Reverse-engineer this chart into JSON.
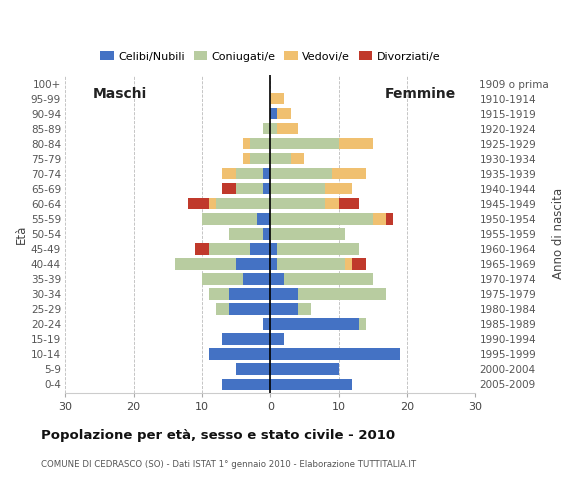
{
  "age_groups": [
    "0-4",
    "5-9",
    "10-14",
    "15-19",
    "20-24",
    "25-29",
    "30-34",
    "35-39",
    "40-44",
    "45-49",
    "50-54",
    "55-59",
    "60-64",
    "65-69",
    "70-74",
    "75-79",
    "80-84",
    "85-89",
    "90-94",
    "95-99",
    "100+"
  ],
  "birth_years": [
    "2005-2009",
    "2000-2004",
    "1995-1999",
    "1990-1994",
    "1985-1989",
    "1980-1984",
    "1975-1979",
    "1970-1974",
    "1965-1969",
    "1960-1964",
    "1955-1959",
    "1950-1954",
    "1945-1949",
    "1940-1944",
    "1935-1939",
    "1930-1934",
    "1925-1929",
    "1920-1924",
    "1915-1919",
    "1910-1914",
    "1909 o prima"
  ],
  "males": {
    "celibe": [
      7,
      5,
      9,
      7,
      1,
      6,
      6,
      4,
      5,
      3,
      1,
      2,
      0,
      1,
      1,
      0,
      0,
      0,
      0,
      0,
      0
    ],
    "coniugato": [
      0,
      0,
      0,
      0,
      0,
      2,
      3,
      6,
      9,
      6,
      5,
      8,
      8,
      4,
      4,
      3,
      3,
      1,
      0,
      0,
      0
    ],
    "vedovo": [
      0,
      0,
      0,
      0,
      0,
      0,
      0,
      0,
      0,
      0,
      0,
      0,
      1,
      0,
      2,
      1,
      1,
      0,
      0,
      0,
      0
    ],
    "divorziato": [
      0,
      0,
      0,
      0,
      0,
      0,
      0,
      0,
      0,
      2,
      0,
      0,
      3,
      2,
      0,
      0,
      0,
      0,
      0,
      0,
      0
    ]
  },
  "females": {
    "nubile": [
      12,
      10,
      19,
      2,
      13,
      4,
      4,
      2,
      1,
      1,
      0,
      0,
      0,
      0,
      0,
      0,
      0,
      0,
      1,
      0,
      0
    ],
    "coniugata": [
      0,
      0,
      0,
      0,
      1,
      2,
      13,
      13,
      10,
      12,
      11,
      15,
      8,
      8,
      9,
      3,
      10,
      1,
      0,
      0,
      0
    ],
    "vedova": [
      0,
      0,
      0,
      0,
      0,
      0,
      0,
      0,
      1,
      0,
      0,
      2,
      2,
      4,
      5,
      2,
      5,
      3,
      2,
      2,
      0
    ],
    "divorziata": [
      0,
      0,
      0,
      0,
      0,
      0,
      0,
      0,
      2,
      0,
      0,
      1,
      3,
      0,
      0,
      0,
      0,
      0,
      0,
      0,
      0
    ]
  },
  "color_celibe": "#4472c4",
  "color_coniugato": "#b8cca0",
  "color_vedovo": "#f0c070",
  "color_divorziato": "#c0392b",
  "title": "Popolazione per età, sesso e stato civile - 2010",
  "subtitle": "COMUNE DI CEDRASCO (SO) - Dati ISTAT 1° gennaio 2010 - Elaborazione TUTTITALIA.IT",
  "label_males": "Maschi",
  "label_females": "Femmine",
  "ylabel_left": "Età",
  "ylabel_right": "Anno di nascita",
  "legend_labels": [
    "Celibi/Nubili",
    "Coniugati/e",
    "Vedovi/e",
    "Divorziati/e"
  ],
  "xlim": 30,
  "bar_height": 0.75,
  "background_color": "#ffffff"
}
